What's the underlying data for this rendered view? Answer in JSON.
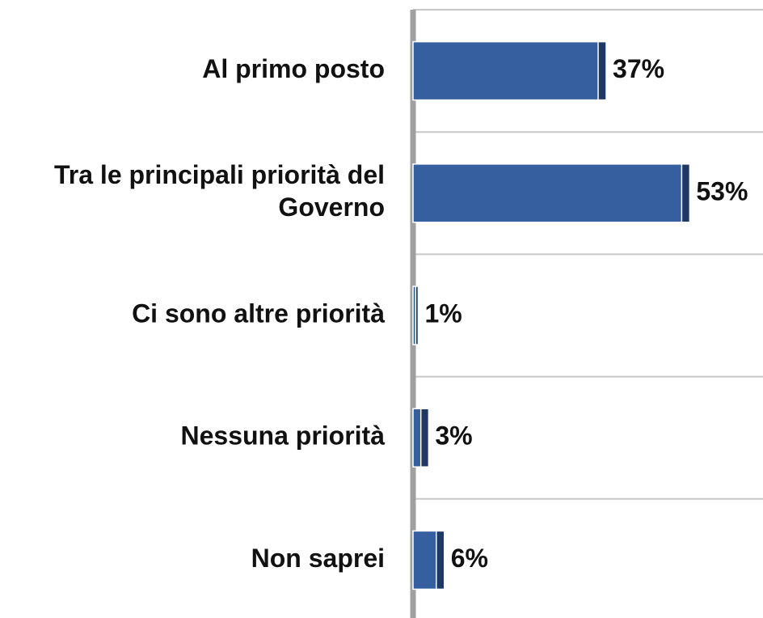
{
  "chart_data": {
    "type": "bar",
    "orientation": "horizontal",
    "categories": [
      "Al primo posto",
      "Tra le principali priorità del Governo",
      "Ci sono altre priorità",
      "Nessuna priorità",
      "Non saprei"
    ],
    "values": [
      37,
      53,
      1,
      3,
      6
    ],
    "value_labels": [
      "37%",
      "53%",
      "1%",
      "3%",
      "6%"
    ],
    "color": "#365f9f",
    "grid": true
  }
}
